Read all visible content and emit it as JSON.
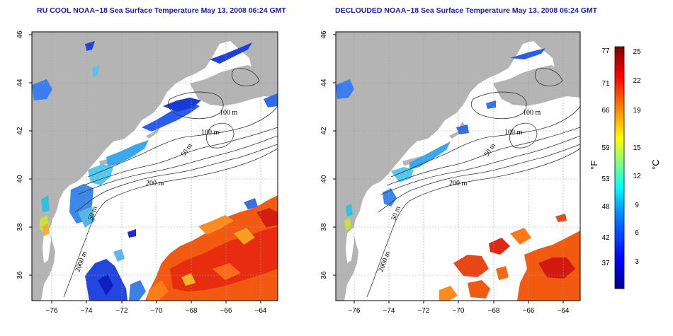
{
  "panels": [
    {
      "title": "RU COOL NOAA−18 Sea Surface Temperature May 13, 2008 06:24 GMT",
      "contour_labels": [
        "100 m",
        "100 m",
        "50 m",
        "200 m",
        "50 m",
        "2000 m"
      ]
    },
    {
      "title": "DECLOUDED NOAA−18 Sea Surface Temperature May 13, 2008 06:24 GMT",
      "contour_labels": [
        "100 m",
        "100 m",
        "50 m",
        "200 m",
        "50 m",
        "2000 m"
      ]
    }
  ],
  "x_ticks": [
    "−76",
    "−74",
    "−72",
    "−70",
    "−68",
    "−66",
    "−64"
  ],
  "y_ticks": [
    "46",
    "44",
    "42",
    "40",
    "38",
    "36"
  ],
  "colorbar": {
    "fahrenheit_ticks": [
      "77",
      "71",
      "66",
      "59",
      "53",
      "48",
      "42",
      "37"
    ],
    "celsius_ticks": [
      "25",
      "22",
      "19",
      "15",
      "12",
      "9",
      "6",
      "3"
    ],
    "fahrenheit_label": "°F",
    "celsius_label": "°C",
    "colors": [
      "#00008f",
      "#0000ff",
      "#0080ff",
      "#00ffff",
      "#80ff80",
      "#ffff00",
      "#ff8000",
      "#ff0000",
      "#800000"
    ]
  },
  "colors": {
    "land": "#b4b4b4",
    "title": "#1a1aa8",
    "grid": "#a0a0a0"
  }
}
